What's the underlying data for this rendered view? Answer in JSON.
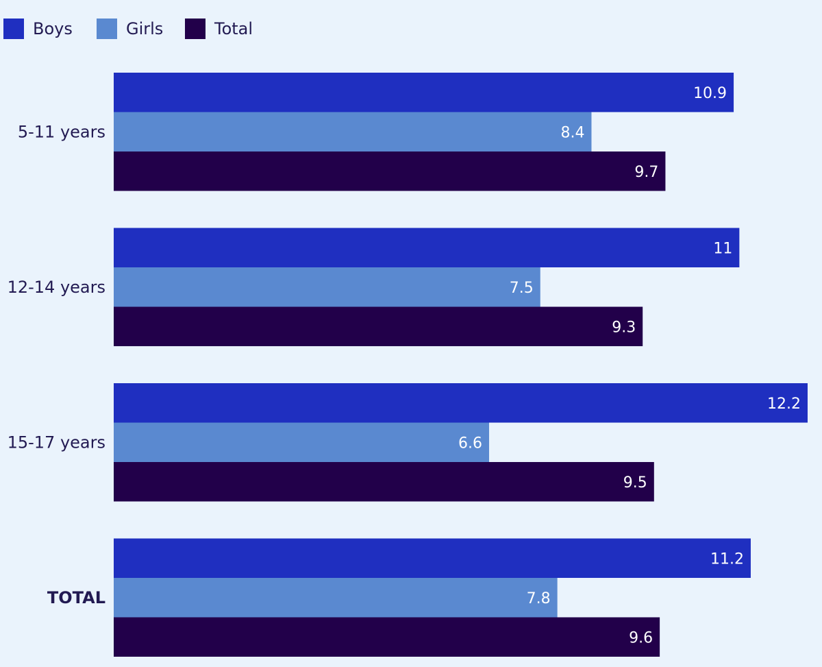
{
  "chart_data": {
    "type": "bar",
    "orientation": "horizontal",
    "title": "",
    "xlabel": "",
    "ylabel": "",
    "categories": [
      "5-11 years",
      "12-14 years",
      "15-17 years",
      "TOTAL"
    ],
    "series": [
      {
        "name": "Boys",
        "color": "#1f2fc0",
        "values": [
          10.9,
          11,
          12.2,
          11.2
        ]
      },
      {
        "name": "Girls",
        "color": "#5a89d0",
        "values": [
          8.4,
          7.5,
          6.6,
          7.8
        ]
      },
      {
        "name": "Total",
        "color": "#22004a",
        "values": [
          9.7,
          9.3,
          9.5,
          9.6
        ]
      }
    ],
    "xlim": [
      0,
      12.5
    ],
    "grid": false,
    "legend": "top-left",
    "data_labels": true
  }
}
